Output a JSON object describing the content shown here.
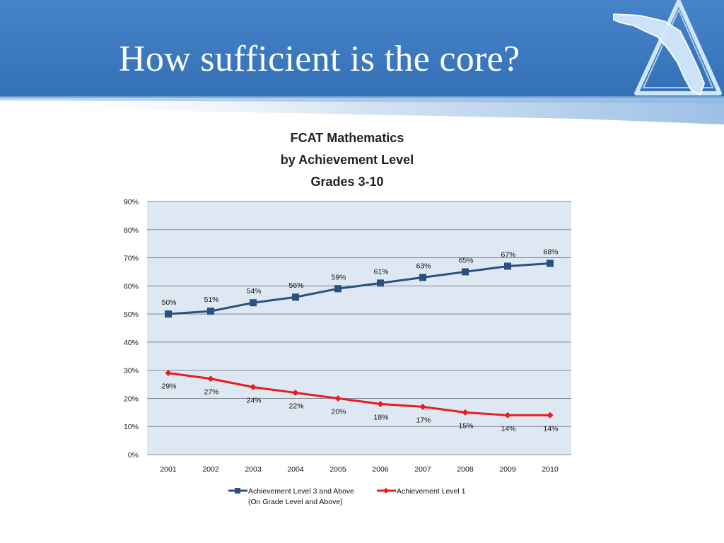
{
  "slide": {
    "title": "How sufficient is the core?",
    "colors": {
      "header_blue": "#3a78c0",
      "header_blue_light": "#5a95d6"
    },
    "logo_icon": "florida-state-logo-icon"
  },
  "chart_data": {
    "type": "line",
    "title_lines": [
      "FCAT Mathematics",
      "by Achievement Level",
      "Grades 3-10"
    ],
    "categories": [
      "2001",
      "2002",
      "2003",
      "2004",
      "2005",
      "2006",
      "2007",
      "2008",
      "2009",
      "2010"
    ],
    "y_ticks": [
      "0%",
      "10%",
      "20%",
      "30%",
      "40%",
      "50%",
      "60%",
      "70%",
      "80%",
      "90%"
    ],
    "ylim": [
      0,
      90
    ],
    "grid": true,
    "plot_background": "#dde8f3",
    "legend_position": "bottom",
    "series": [
      {
        "name": "Achievement Level 3 and Above",
        "name_line2": "(On Grade Level and Above)",
        "color": "#2b4f7e",
        "marker": "square",
        "values": [
          50,
          51,
          54,
          56,
          59,
          61,
          63,
          65,
          67,
          68
        ],
        "labels": [
          "50%",
          "51%",
          "54%",
          "56%",
          "59%",
          "61%",
          "63%",
          "65%",
          "67%",
          "68%"
        ]
      },
      {
        "name": "Achievement Level 1",
        "color": "#e81c1c",
        "marker": "diamond",
        "values": [
          29,
          27,
          24,
          22,
          20,
          18,
          17,
          15,
          14,
          14
        ],
        "labels": [
          "29%",
          "27%",
          "24%",
          "22%",
          "20%",
          "18%",
          "17%",
          "15%",
          "14%",
          "14%"
        ]
      }
    ]
  }
}
